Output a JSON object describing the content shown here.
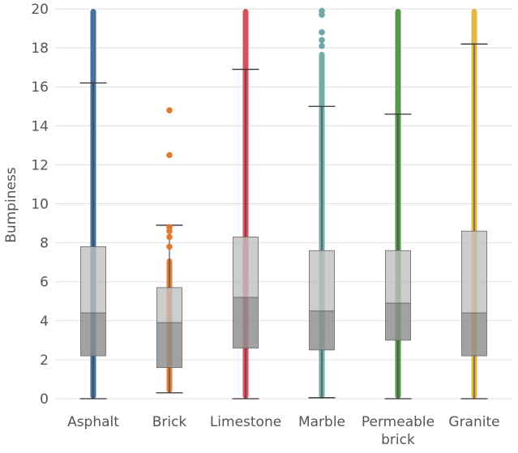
{
  "chart_data": {
    "type": "box",
    "title": "",
    "xlabel": "",
    "ylabel": "Bumpiness",
    "ylim": [
      0,
      20
    ],
    "yticks": [
      0,
      2,
      4,
      6,
      8,
      10,
      12,
      14,
      16,
      18,
      20
    ],
    "grid": true,
    "categories": [
      "Asphalt",
      "Brick",
      "Limestone",
      "Marble",
      "Permeable brick",
      "Granite"
    ],
    "category_lines": [
      [
        "Asphalt"
      ],
      [
        "Brick"
      ],
      [
        "Limestone"
      ],
      [
        "Marble"
      ],
      [
        "Permeable",
        "brick"
      ],
      [
        "Granite"
      ]
    ],
    "series": [
      {
        "category": "Asphalt",
        "color": "#3d6a9a",
        "whisker_low": 0.0,
        "q1": 2.2,
        "median": 4.4,
        "q3": 7.8,
        "whisker_high": 16.2,
        "outlier_band": [
          0,
          20
        ],
        "outliers": []
      },
      {
        "category": "Brick",
        "color": "#e07b30",
        "whisker_low": 0.3,
        "q1": 1.6,
        "median": 3.9,
        "q3": 5.7,
        "whisker_high": 8.9,
        "outlier_band": [
          0.3,
          7.2
        ],
        "outliers": [
          7.8,
          8.3,
          8.6,
          8.8,
          12.5,
          14.8
        ]
      },
      {
        "category": "Limestone",
        "color": "#d44a55",
        "whisker_low": 0.0,
        "q1": 2.6,
        "median": 5.2,
        "q3": 8.3,
        "whisker_high": 16.9,
        "outlier_band": [
          0,
          20
        ],
        "outliers": []
      },
      {
        "category": "Marble",
        "color": "#6aa9a6",
        "whisker_low": 0.05,
        "q1": 2.5,
        "median": 4.5,
        "q3": 7.6,
        "whisker_high": 15.0,
        "outlier_band": [
          0,
          17.8
        ],
        "outliers": [
          18.1,
          18.4,
          18.8,
          19.7,
          19.9
        ]
      },
      {
        "category": "Permeable brick",
        "color": "#4f8f46",
        "whisker_low": 0.0,
        "q1": 3.0,
        "median": 4.9,
        "q3": 7.6,
        "whisker_high": 14.6,
        "outlier_band": [
          0,
          20
        ],
        "outliers": []
      },
      {
        "category": "Granite",
        "color": "#e2b33c",
        "whisker_low": 0.0,
        "q1": 2.2,
        "median": 4.4,
        "q3": 8.6,
        "whisker_high": 18.2,
        "outlier_band": [
          0,
          20
        ],
        "outliers": []
      }
    ]
  }
}
